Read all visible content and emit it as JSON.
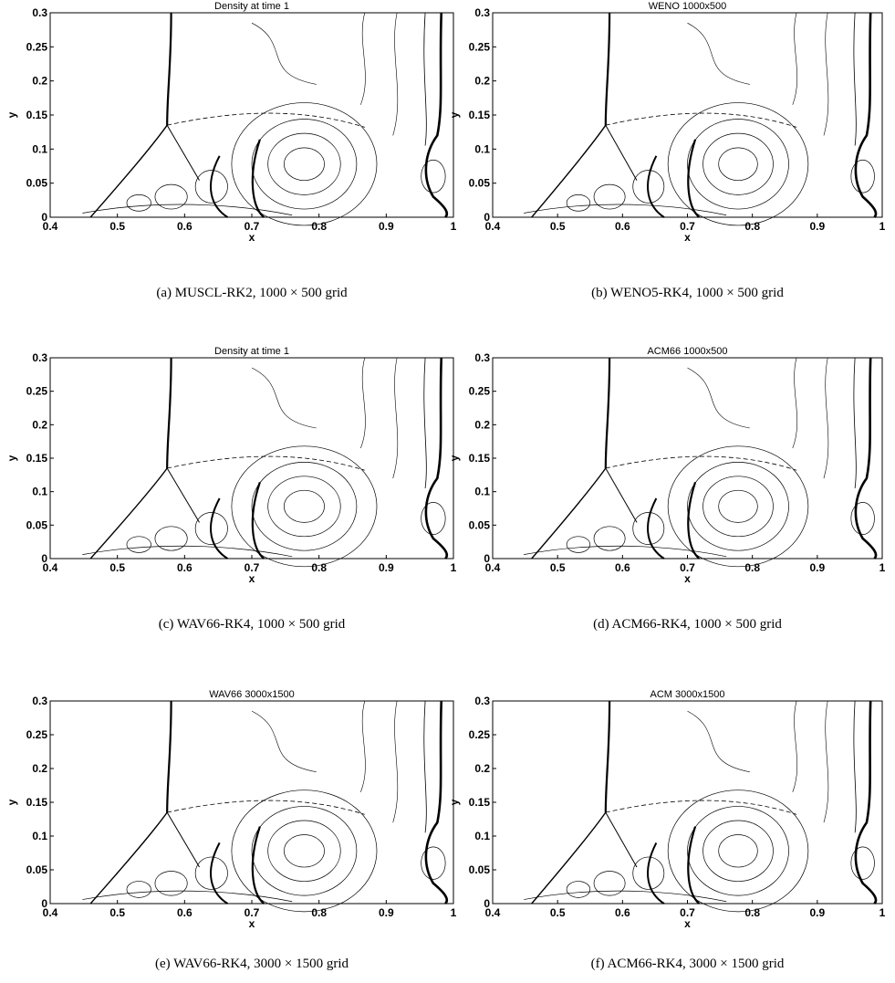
{
  "figure": {
    "panels": [
      {
        "title": "Density at time 1",
        "xlabel": "x",
        "ylabel": "y",
        "xlim": [
          0.4,
          1
        ],
        "ylim": [
          0,
          0.3
        ],
        "xticks": [
          0.4,
          0.5,
          0.6,
          0.7,
          0.8,
          0.9,
          1
        ],
        "yticks": [
          0,
          0.05,
          0.1,
          0.15,
          0.2,
          0.25,
          0.3
        ],
        "caption": "(a) MUSCL-RK2, 1000 × 500 grid"
      },
      {
        "title": "WENO 1000x500",
        "xlabel": "x",
        "ylabel": "y",
        "xlim": [
          0.4,
          1
        ],
        "ylim": [
          0,
          0.3
        ],
        "xticks": [
          0.4,
          0.5,
          0.6,
          0.7,
          0.8,
          0.9,
          1
        ],
        "yticks": [
          0,
          0.05,
          0.1,
          0.15,
          0.2,
          0.25,
          0.3
        ],
        "caption": "(b) WENO5-RK4, 1000 × 500 grid"
      },
      {
        "title": "Density at time 1",
        "xlabel": "x",
        "ylabel": "y",
        "xlim": [
          0.4,
          1
        ],
        "ylim": [
          0,
          0.3
        ],
        "xticks": [
          0.4,
          0.5,
          0.6,
          0.7,
          0.8,
          0.9,
          1
        ],
        "yticks": [
          0,
          0.05,
          0.1,
          0.15,
          0.2,
          0.25,
          0.3
        ],
        "caption": "(c) WAV66-RK4, 1000 × 500 grid"
      },
      {
        "title": "ACM66 1000x500",
        "xlabel": "x",
        "ylabel": "y",
        "xlim": [
          0.4,
          1
        ],
        "ylim": [
          0,
          0.3
        ],
        "xticks": [
          0.4,
          0.5,
          0.6,
          0.7,
          0.8,
          0.9,
          1
        ],
        "yticks": [
          0,
          0.05,
          0.1,
          0.15,
          0.2,
          0.25,
          0.3
        ],
        "caption": "(d) ACM66-RK4, 1000 × 500 grid"
      },
      {
        "title": "WAV66 3000x1500",
        "xlabel": "x",
        "ylabel": "y",
        "xlim": [
          0.4,
          1
        ],
        "ylim": [
          0,
          0.3
        ],
        "xticks": [
          0.4,
          0.5,
          0.6,
          0.7,
          0.8,
          0.9,
          1
        ],
        "yticks": [
          0,
          0.05,
          0.1,
          0.15,
          0.2,
          0.25,
          0.3
        ],
        "caption": "(e) WAV66-RK4, 3000 × 1500 grid"
      },
      {
        "title": "ACM 3000x1500",
        "xlabel": "x",
        "ylabel": "y",
        "xlim": [
          0.4,
          1
        ],
        "ylim": [
          0,
          0.3
        ],
        "xticks": [
          0.4,
          0.5,
          0.6,
          0.7,
          0.8,
          0.9,
          1
        ],
        "yticks": [
          0,
          0.05,
          0.1,
          0.15,
          0.2,
          0.25,
          0.3
        ],
        "caption": "(f) ACM66-RK4, 3000 × 1500 grid"
      }
    ]
  }
}
